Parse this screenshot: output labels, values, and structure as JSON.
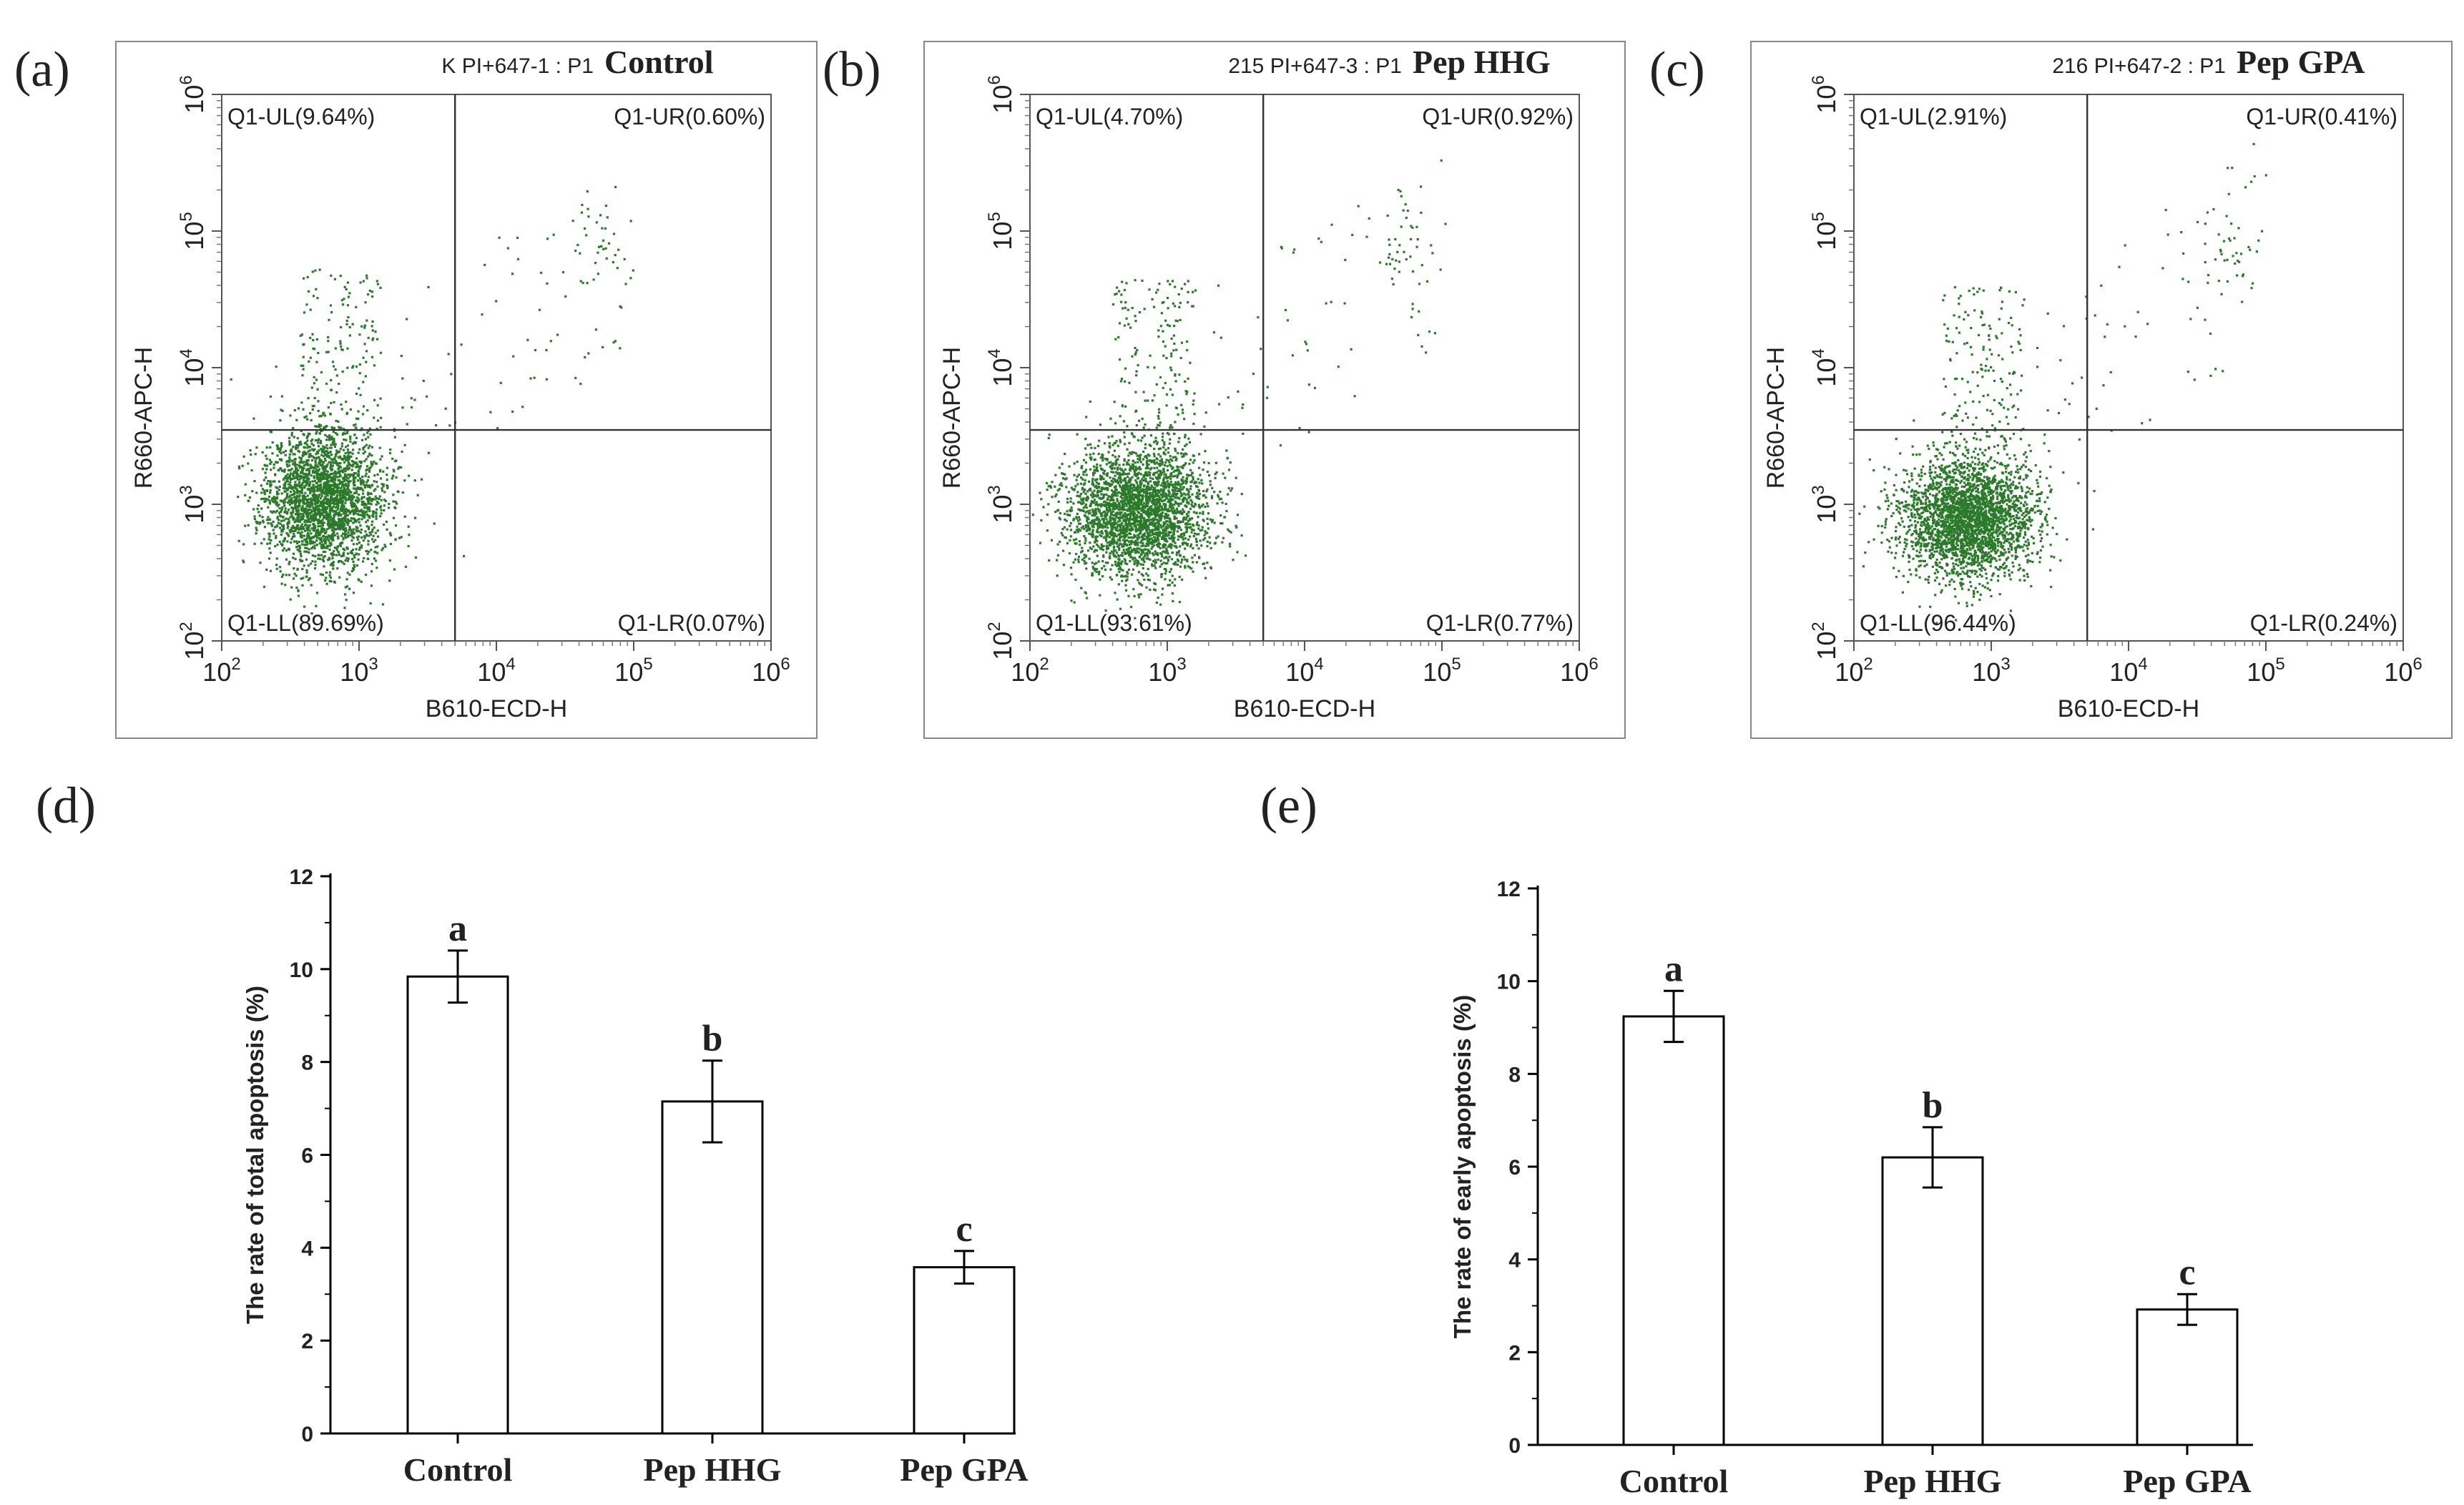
{
  "chart_data": [
    {
      "type": "scatter",
      "panel_label": "(a)",
      "sample_id": "K PI+647-1 : P1",
      "title": "Control",
      "xlabel": "B610-ECD-H",
      "ylabel": "R660-APC-H",
      "xscale": "log",
      "yscale": "log",
      "xlim": [
        100,
        1000000
      ],
      "ylim": [
        100,
        1000000
      ],
      "x_ticks": [
        {
          "base": "10",
          "exp": "2"
        },
        {
          "base": "10",
          "exp": "3"
        },
        {
          "base": "10",
          "exp": "4"
        },
        {
          "base": "10",
          "exp": "5"
        },
        {
          "base": "10",
          "exp": "6"
        }
      ],
      "y_ticks": [
        {
          "base": "10",
          "exp": "2"
        },
        {
          "base": "10",
          "exp": "3"
        },
        {
          "base": "10",
          "exp": "4"
        },
        {
          "base": "10",
          "exp": "5"
        },
        {
          "base": "10",
          "exp": "6"
        }
      ],
      "gate_x": 5000,
      "gate_y": 3500,
      "quadrants": {
        "UL": "Q1-UL(9.64%)",
        "UR": "Q1-UR(0.60%)",
        "LL": "Q1-LL(89.69%)",
        "LR": "Q1-LR(0.07%)"
      },
      "population": {
        "cx": 550,
        "cy": 1100,
        "spread_x": 0.22,
        "spread_y": 0.26,
        "count": 2600,
        "seed": 11
      },
      "marker_color": "#2a7a2a"
    },
    {
      "type": "scatter",
      "panel_label": "(b)",
      "sample_id": "215 PI+647-3 : P1",
      "title": "Pep HHG",
      "xlabel": "B610-ECD-H",
      "ylabel": "R660-APC-H",
      "xscale": "log",
      "yscale": "log",
      "xlim": [
        100,
        1000000
      ],
      "ylim": [
        100,
        1000000
      ],
      "x_ticks": [
        {
          "base": "10",
          "exp": "2"
        },
        {
          "base": "10",
          "exp": "3"
        },
        {
          "base": "10",
          "exp": "4"
        },
        {
          "base": "10",
          "exp": "5"
        },
        {
          "base": "10",
          "exp": "6"
        }
      ],
      "y_ticks": [
        {
          "base": "10",
          "exp": "2"
        },
        {
          "base": "10",
          "exp": "3"
        },
        {
          "base": "10",
          "exp": "4"
        },
        {
          "base": "10",
          "exp": "5"
        },
        {
          "base": "10",
          "exp": "6"
        }
      ],
      "gate_x": 5000,
      "gate_y": 3500,
      "quadrants": {
        "UL": "Q1-UL(4.70%)",
        "UR": "Q1-UR(0.92%)",
        "LL": "Q1-LL(93.61%)",
        "LR": "Q1-LR(0.77%)"
      },
      "population": {
        "cx": 600,
        "cy": 900,
        "spread_x": 0.26,
        "spread_y": 0.24,
        "count": 2800,
        "seed": 23
      },
      "marker_color": "#2a7a2a"
    },
    {
      "type": "scatter",
      "panel_label": "(c)",
      "sample_id": "216 PI+647-2 : P1",
      "title": "Pep GPA",
      "xlabel": "B610-ECD-H",
      "ylabel": "R660-APC-H",
      "xscale": "log",
      "yscale": "log",
      "xlim": [
        100,
        1000000
      ],
      "ylim": [
        100,
        1000000
      ],
      "x_ticks": [
        {
          "base": "10",
          "exp": "2"
        },
        {
          "base": "10",
          "exp": "3"
        },
        {
          "base": "10",
          "exp": "4"
        },
        {
          "base": "10",
          "exp": "5"
        },
        {
          "base": "10",
          "exp": "6"
        }
      ],
      "y_ticks": [
        {
          "base": "10",
          "exp": "2"
        },
        {
          "base": "10",
          "exp": "3"
        },
        {
          "base": "10",
          "exp": "4"
        },
        {
          "base": "10",
          "exp": "5"
        },
        {
          "base": "10",
          "exp": "6"
        }
      ],
      "gate_x": 5000,
      "gate_y": 3500,
      "quadrants": {
        "UL": "Q1-UL(2.91%)",
        "UR": "Q1-UR(0.41%)",
        "LL": "Q1-LL(96.44%)",
        "LR": "Q1-LR(0.24%)"
      },
      "population": {
        "cx": 650,
        "cy": 800,
        "spread_x": 0.24,
        "spread_y": 0.22,
        "count": 2800,
        "seed": 37
      },
      "marker_color": "#2a7a2a"
    },
    {
      "type": "bar",
      "panel_label": "(d)",
      "title": "",
      "xlabel": "",
      "ylabel": "The rate of total apoptosis (%)",
      "categories": [
        "Control",
        "Pep HHG",
        "Pep GPA"
      ],
      "values": [
        9.84,
        7.15,
        3.58
      ],
      "errors": [
        0.56,
        0.88,
        0.35
      ],
      "significance": [
        "a",
        "b",
        "c"
      ],
      "ylim": [
        0,
        12
      ],
      "y_ticks": [
        "0",
        "2",
        "4",
        "6",
        "8",
        "10",
        "12"
      ]
    },
    {
      "type": "bar",
      "panel_label": "(e)",
      "title": "",
      "xlabel": "",
      "ylabel": "The rate of early apoptosis (%)",
      "categories": [
        "Control",
        "Pep HHG",
        "Pep GPA"
      ],
      "values": [
        9.24,
        6.2,
        2.92
      ],
      "errors": [
        0.55,
        0.65,
        0.33
      ],
      "significance": [
        "a",
        "b",
        "c"
      ],
      "ylim": [
        0,
        12
      ],
      "y_ticks": [
        "0",
        "2",
        "4",
        "6",
        "8",
        "10",
        "12"
      ]
    }
  ]
}
